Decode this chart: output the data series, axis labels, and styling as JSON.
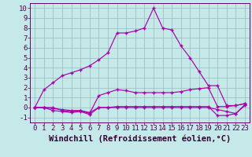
{
  "xlabel": "Windchill (Refroidissement éolien,°C)",
  "bg_color": "#c5e8e8",
  "line_color": "#aa00aa",
  "grid_color": "#99bbbb",
  "xlim": [
    -0.5,
    23.5
  ],
  "ylim": [
    -1.5,
    10.5
  ],
  "xticks": [
    0,
    1,
    2,
    3,
    4,
    5,
    6,
    7,
    8,
    9,
    10,
    11,
    12,
    13,
    14,
    15,
    16,
    17,
    18,
    19,
    20,
    21,
    22,
    23
  ],
  "yticks": [
    -1,
    0,
    1,
    2,
    3,
    4,
    5,
    6,
    7,
    8,
    9,
    10
  ],
  "line1_x": [
    0,
    1,
    2,
    3,
    4,
    5,
    6,
    7,
    8,
    9,
    10,
    11,
    12,
    13,
    14,
    15,
    16,
    17,
    18,
    19,
    20,
    21,
    22,
    23
  ],
  "line1_y": [
    0.0,
    1.8,
    2.5,
    3.2,
    3.5,
    3.8,
    4.2,
    4.8,
    5.5,
    7.5,
    7.5,
    7.7,
    8.0,
    10.0,
    8.0,
    7.8,
    6.2,
    5.0,
    3.6,
    2.2,
    2.2,
    0.2,
    0.2,
    0.4
  ],
  "line2_x": [
    0,
    1,
    2,
    3,
    4,
    5,
    6,
    7,
    8,
    9,
    10,
    11,
    12,
    13,
    14,
    15,
    16,
    17,
    18,
    19,
    20,
    21,
    22,
    23
  ],
  "line2_y": [
    0.0,
    0.0,
    0.0,
    -0.3,
    -0.4,
    -0.3,
    -0.6,
    1.2,
    1.5,
    1.8,
    1.7,
    1.5,
    1.5,
    1.5,
    1.5,
    1.5,
    1.6,
    1.8,
    1.9,
    2.0,
    0.1,
    0.1,
    0.2,
    0.4
  ],
  "line3_x": [
    0,
    1,
    2,
    3,
    4,
    5,
    6,
    7,
    8,
    9,
    10,
    11,
    12,
    13,
    14,
    15,
    16,
    17,
    18,
    19,
    20,
    21,
    22,
    23
  ],
  "line3_y": [
    0.0,
    0.0,
    -0.3,
    -0.4,
    -0.5,
    -0.4,
    -0.7,
    0.0,
    0.0,
    0.1,
    0.1,
    0.1,
    0.1,
    0.1,
    0.1,
    0.1,
    0.1,
    0.1,
    0.1,
    0.1,
    -0.8,
    -0.8,
    -0.6,
    0.3
  ],
  "line4_x": [
    0,
    1,
    2,
    3,
    4,
    5,
    6,
    7,
    8,
    9,
    10,
    11,
    12,
    13,
    14,
    15,
    16,
    17,
    18,
    19,
    20,
    21,
    22,
    23
  ],
  "line4_y": [
    0.0,
    0.0,
    -0.1,
    -0.2,
    -0.3,
    -0.3,
    -0.5,
    0.0,
    0.0,
    0.0,
    0.0,
    0.0,
    0.0,
    0.0,
    0.0,
    0.0,
    0.0,
    0.0,
    0.0,
    0.0,
    -0.2,
    -0.4,
    -0.6,
    0.2
  ],
  "tick_fontsize": 6.5,
  "label_fontsize": 7.5
}
